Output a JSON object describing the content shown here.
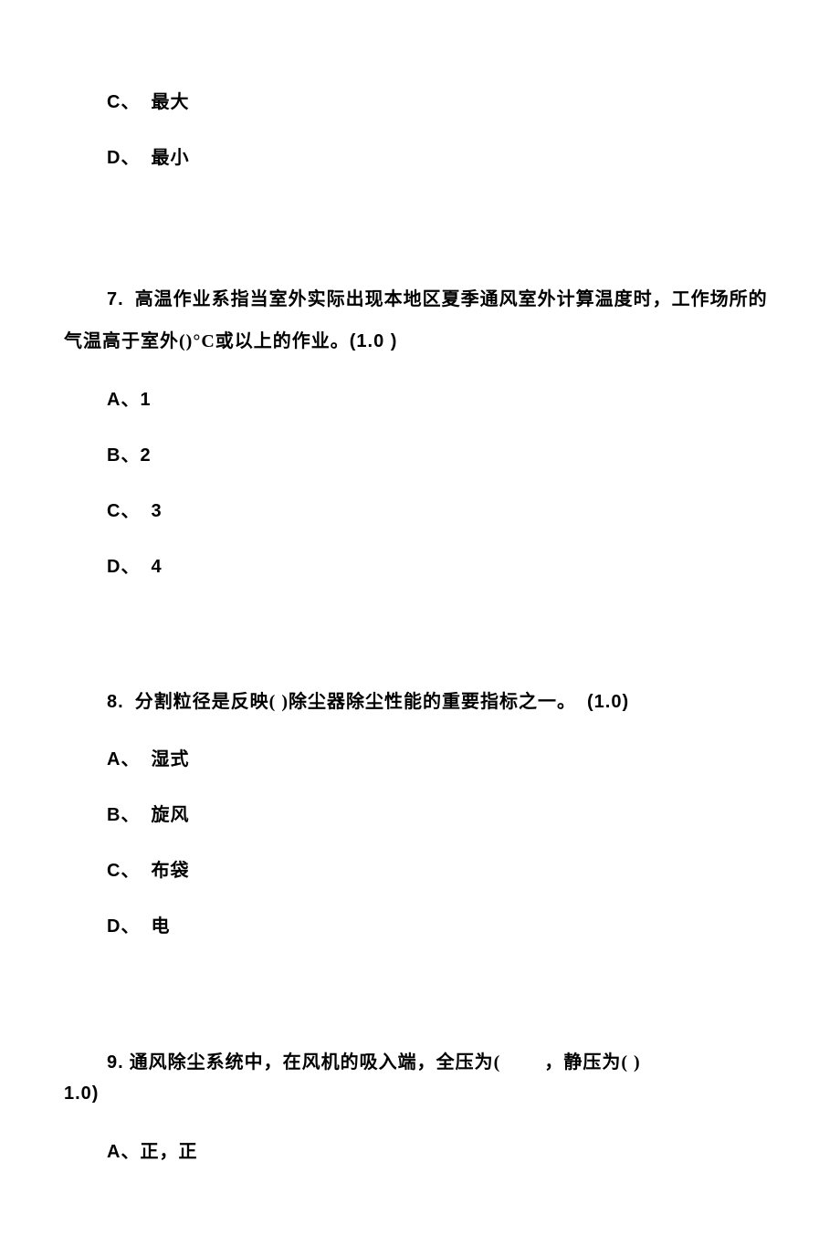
{
  "q6_options": {
    "c_label": "C、",
    "c_text": "最大",
    "d_label": "D、",
    "d_text": "最小"
  },
  "q7": {
    "number": "7.",
    "text": "高温作业系指当室外实际出现本地区夏季通风室外计算温度时，工作场所的气温高于室外()°C或以上的作业。",
    "points": "(1.0 )",
    "options": {
      "a_label": "A、",
      "a_text": "1",
      "b_label": "B、",
      "b_text": "2",
      "c_label": "C、",
      "c_text": "3",
      "d_label": "D、",
      "d_text": "4"
    }
  },
  "q8": {
    "number": "8.",
    "text": "分割粒径是反映(  )除尘器除尘性能的重要指标之一。",
    "points": "(1.0)",
    "options": {
      "a_label": "A、",
      "a_text": "湿式",
      "b_label": "B、",
      "b_text": "旋风",
      "c_label": "C、",
      "c_text": "布袋",
      "d_label": "D、",
      "d_text": "电"
    }
  },
  "q9": {
    "number": "9.",
    "text_part1": "通风除尘系统中，在风机的吸入端，全压为(",
    "text_part2": "，静压为(  )",
    "points": "1.0)",
    "options": {
      "a_label": "A、",
      "a_text": "正，正"
    }
  },
  "style": {
    "text_color": "#000000",
    "background_color": "#ffffff",
    "font_size_pt": 15,
    "font_family": "SimSun"
  }
}
